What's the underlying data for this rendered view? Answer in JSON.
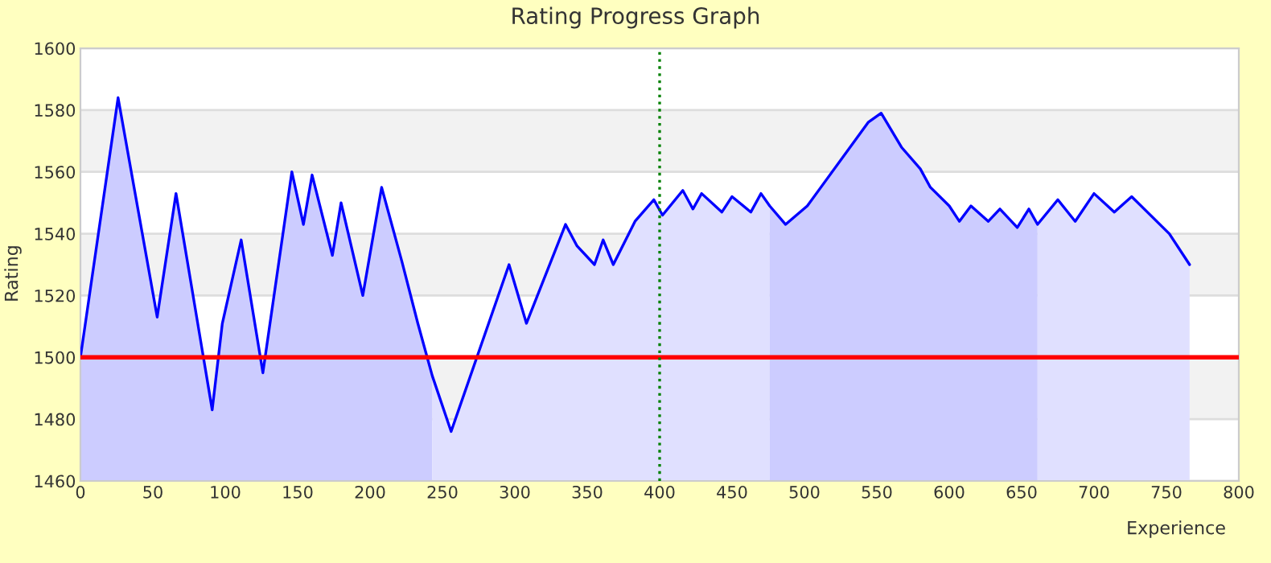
{
  "chart_data": {
    "type": "area",
    "title": "Rating Progress Graph",
    "xlabel": "Experience",
    "ylabel": "Rating",
    "xlim": [
      0,
      800
    ],
    "xticks": [
      0,
      50,
      100,
      150,
      200,
      250,
      300,
      350,
      400,
      450,
      500,
      550,
      600,
      650,
      700,
      750,
      800
    ],
    "ylim": [
      1460,
      1600
    ],
    "yticks": [
      1460,
      1480,
      1500,
      1520,
      1540,
      1560,
      1580,
      1600
    ],
    "grid": "y",
    "legend": false,
    "series": [
      {
        "color": "#ccccff",
        "x": [
          0,
          26,
          53,
          66,
          91,
          98,
          111,
          126,
          146,
          154,
          160,
          174,
          180,
          195,
          208,
          222,
          233,
          243
        ],
        "values": [
          1500,
          1584,
          1513,
          1553,
          1483,
          1511,
          1538,
          1495,
          1560,
          1543,
          1559,
          1533,
          1550,
          1520,
          1555,
          1531,
          1511,
          1494
        ]
      },
      {
        "color": "#e0e0ff",
        "x": [
          243,
          256,
          296,
          308,
          335,
          343,
          355,
          361,
          368,
          383,
          396,
          402,
          416,
          423,
          429,
          443,
          450,
          463,
          470,
          476
        ],
        "values": [
          1494,
          1476,
          1530,
          1511,
          1543,
          1536,
          1530,
          1538,
          1530,
          1544,
          1551,
          1546,
          1554,
          1548,
          1553,
          1547,
          1552,
          1547,
          1553,
          1549
        ]
      },
      {
        "color": "#ccccff",
        "x": [
          476,
          487,
          502,
          544,
          553,
          567,
          580,
          587,
          600,
          607,
          615,
          627,
          635,
          647,
          655,
          661
        ],
        "values": [
          1549,
          1543,
          1549,
          1576,
          1579,
          1568,
          1561,
          1555,
          1549,
          1544,
          1549,
          1544,
          1548,
          1542,
          1548,
          1543
        ]
      },
      {
        "color": "#e0e0ff",
        "x": [
          661,
          675,
          687,
          700,
          714,
          726,
          752,
          766
        ],
        "values": [
          1543,
          1551,
          1544,
          1553,
          1547,
          1552,
          1540,
          1530
        ]
      },
      {
        "type": "line",
        "color": "#0000ff",
        "x": [
          0,
          26,
          53,
          66,
          91,
          98,
          111,
          126,
          146,
          154,
          160,
          174,
          180,
          195,
          208,
          222,
          233,
          243,
          256,
          296,
          308,
          335,
          343,
          355,
          361,
          368,
          383,
          396,
          402,
          416,
          423,
          429,
          443,
          450,
          463,
          470,
          476,
          487,
          502,
          544,
          553,
          567,
          580,
          587,
          600,
          607,
          615,
          627,
          635,
          647,
          655,
          661,
          675,
          687,
          700,
          714,
          726,
          752,
          766
        ],
        "values": [
          1500,
          1584,
          1513,
          1553,
          1483,
          1511,
          1538,
          1495,
          1560,
          1543,
          1559,
          1533,
          1550,
          1520,
          1555,
          1531,
          1511,
          1494,
          1476,
          1530,
          1511,
          1543,
          1536,
          1530,
          1538,
          1530,
          1544,
          1551,
          1546,
          1554,
          1548,
          1553,
          1547,
          1552,
          1547,
          1553,
          1549,
          1543,
          1549,
          1576,
          1579,
          1568,
          1561,
          1555,
          1549,
          1544,
          1549,
          1544,
          1548,
          1542,
          1548,
          1543,
          1551,
          1544,
          1553,
          1547,
          1552,
          1540,
          1530
        ]
      }
    ],
    "ref_lines": [
      {
        "axis": "y",
        "value": 1500,
        "color": "#ff0000",
        "line_style": "solid"
      },
      {
        "axis": "x",
        "value": 400,
        "color": "#008000",
        "line_style": "dotted"
      }
    ]
  }
}
